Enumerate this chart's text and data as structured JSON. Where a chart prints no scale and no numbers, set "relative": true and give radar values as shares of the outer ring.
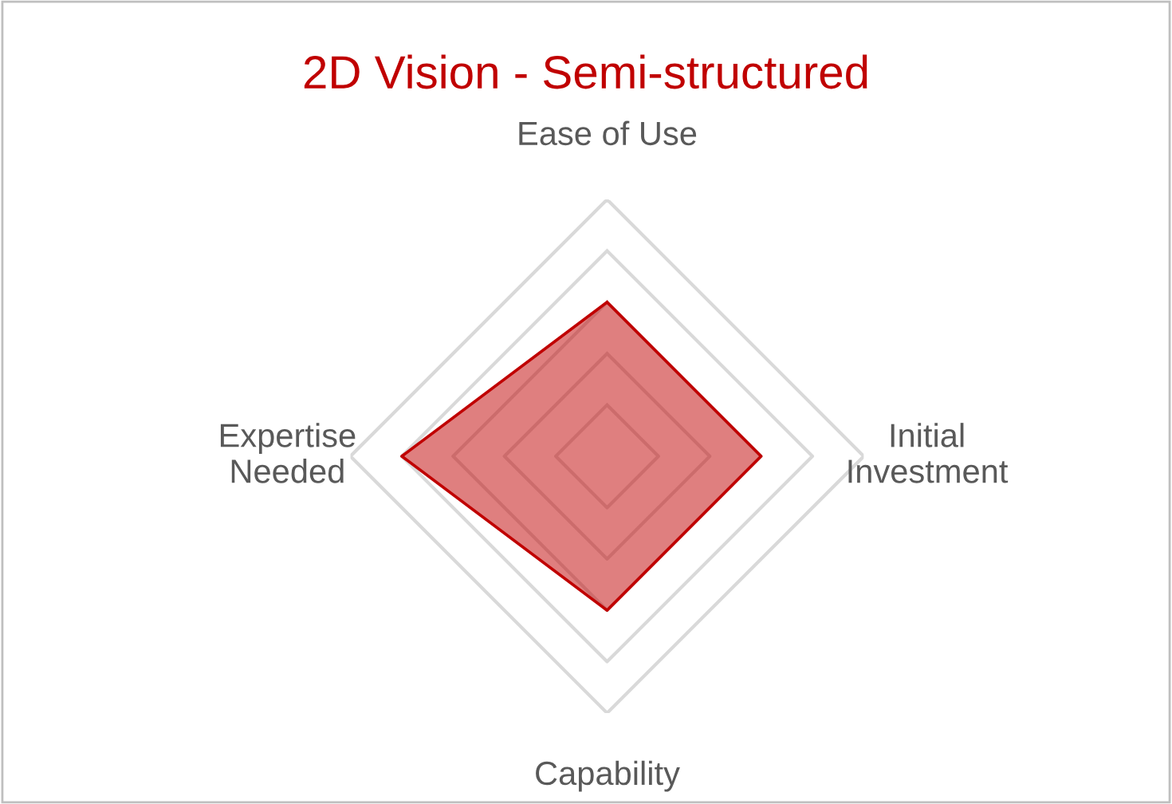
{
  "chart_data": {
    "type": "radar",
    "title": "2D Vision - Semi-structured",
    "relative": true,
    "grid": true,
    "categories": [
      "Ease of Use",
      "Initial\nInvestment",
      "Capability",
      "Expertise\nNeeded"
    ],
    "series": [
      {
        "color": "#c00000",
        "values": [
          0.6,
          0.6,
          0.6,
          0.8
        ]
      }
    ]
  }
}
